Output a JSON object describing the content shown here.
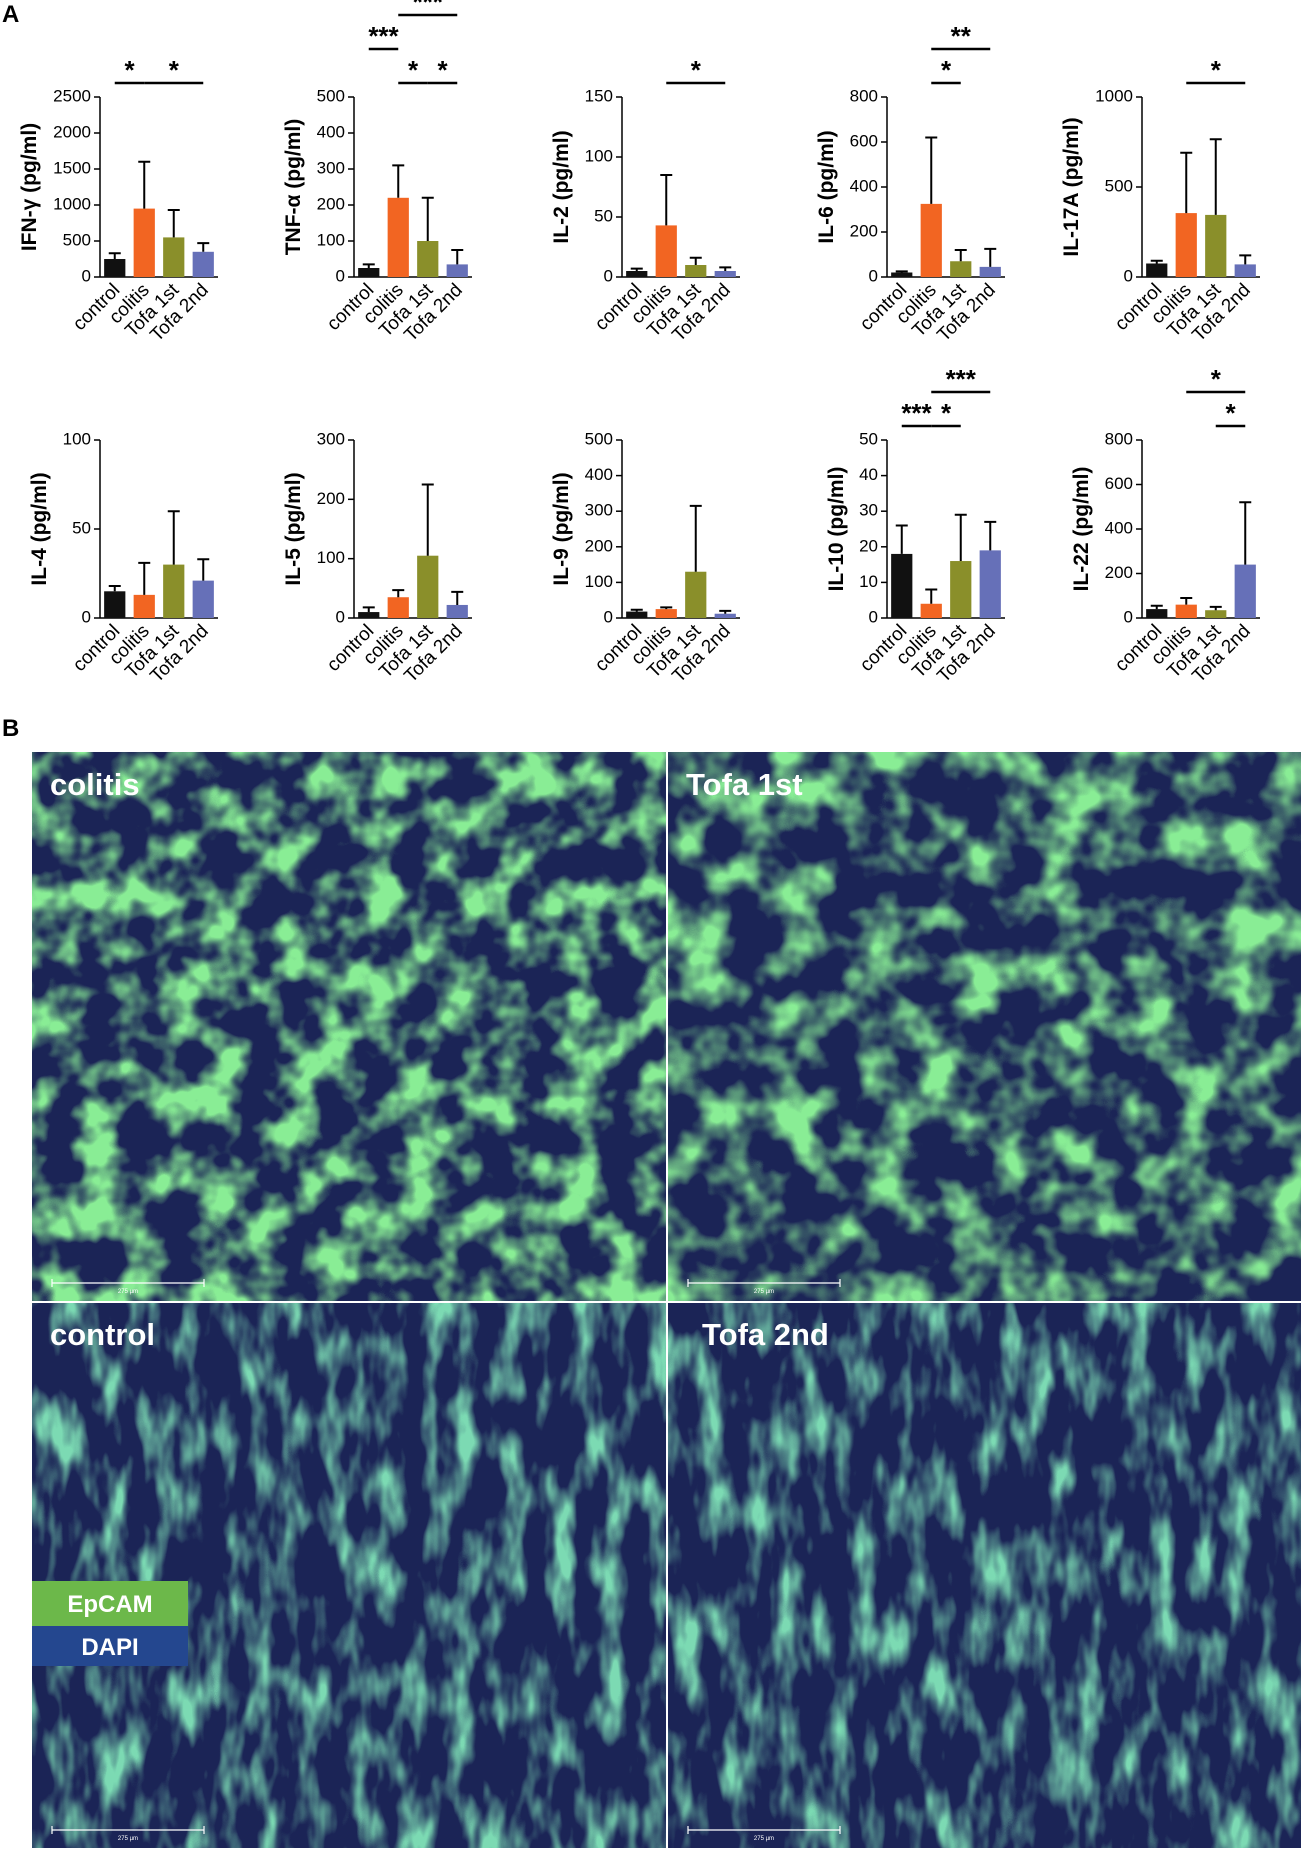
{
  "panels": [
    "A",
    "B"
  ],
  "chart_data": [
    {
      "type": "bar",
      "ylabel": "IFN-γ (pg/ml)",
      "categories": [
        "control",
        "colitis",
        "Tofa 1st",
        "Tofa 2nd"
      ],
      "colors": [
        "#111111",
        "#f26522",
        "#8a8f2a",
        "#6670b8"
      ],
      "values": [
        250,
        950,
        550,
        350
      ],
      "errors": [
        80,
        650,
        380,
        120
      ],
      "ylim": [
        0,
        2500
      ],
      "yticks": [
        0,
        500,
        1000,
        1500,
        2000,
        2500
      ],
      "annotations": [
        "*",
        "*"
      ]
    },
    {
      "type": "bar",
      "ylabel": "TNF-α (pg/ml)",
      "categories": [
        "control",
        "colitis",
        "Tofa 1st",
        "Tofa 2nd"
      ],
      "colors": [
        "#111111",
        "#f26522",
        "#8a8f2a",
        "#6670b8"
      ],
      "values": [
        25,
        220,
        100,
        35
      ],
      "errors": [
        10,
        90,
        120,
        40
      ],
      "ylim": [
        0,
        500
      ],
      "yticks": [
        0,
        100,
        200,
        300,
        400,
        500
      ],
      "annotations": [
        "***",
        "*",
        "*",
        "***"
      ]
    },
    {
      "type": "bar",
      "ylabel": "IL-2 (pg/ml)",
      "categories": [
        "control",
        "colitis",
        "Tofa 1st",
        "Tofa 2nd"
      ],
      "colors": [
        "#111111",
        "#f26522",
        "#8a8f2a",
        "#6670b8"
      ],
      "values": [
        5,
        43,
        10,
        5
      ],
      "errors": [
        2,
        42,
        6,
        3
      ],
      "ylim": [
        0,
        150
      ],
      "yticks": [
        0,
        50,
        100,
        150
      ],
      "annotations": [
        "*"
      ]
    },
    {
      "type": "bar",
      "ylabel": "IL-6 (pg/ml)",
      "categories": [
        "control",
        "colitis",
        "Tofa 1st",
        "Tofa 2nd"
      ],
      "colors": [
        "#111111",
        "#f26522",
        "#8a8f2a",
        "#6670b8"
      ],
      "values": [
        20,
        325,
        70,
        45
      ],
      "errors": [
        5,
        295,
        50,
        80
      ],
      "ylim": [
        0,
        800
      ],
      "yticks": [
        0,
        200,
        400,
        600,
        800
      ],
      "annotations": [
        "*",
        "**"
      ]
    },
    {
      "type": "bar",
      "ylabel": "IL-17A (pg/ml)",
      "categories": [
        "control",
        "colitis",
        "Tofa 1st",
        "Tofa 2nd"
      ],
      "colors": [
        "#111111",
        "#f26522",
        "#8a8f2a",
        "#6670b8"
      ],
      "values": [
        75,
        355,
        345,
        70
      ],
      "errors": [
        15,
        335,
        420,
        50
      ],
      "ylim": [
        0,
        1000
      ],
      "yticks": [
        0,
        500,
        1000
      ],
      "annotations": [
        "*"
      ]
    },
    {
      "type": "bar",
      "ylabel": "IL-4 (pg/ml)",
      "categories": [
        "control",
        "colitis",
        "Tofa 1st",
        "Tofa 2nd"
      ],
      "colors": [
        "#111111",
        "#f26522",
        "#8a8f2a",
        "#6670b8"
      ],
      "values": [
        15,
        13,
        30,
        21
      ],
      "errors": [
        3,
        18,
        30,
        12
      ],
      "ylim": [
        0,
        100
      ],
      "yticks": [
        0,
        50,
        100
      ],
      "annotations": []
    },
    {
      "type": "bar",
      "ylabel": "IL-5 (pg/ml)",
      "categories": [
        "control",
        "colitis",
        "Tofa 1st",
        "Tofa 2nd"
      ],
      "colors": [
        "#111111",
        "#f26522",
        "#8a8f2a",
        "#6670b8"
      ],
      "values": [
        10,
        35,
        105,
        22
      ],
      "errors": [
        8,
        12,
        120,
        22
      ],
      "ylim": [
        0,
        300
      ],
      "yticks": [
        0,
        100,
        200,
        300
      ],
      "annotations": []
    },
    {
      "type": "bar",
      "ylabel": "IL-9 (pg/ml)",
      "categories": [
        "control",
        "colitis",
        "Tofa 1st",
        "Tofa 2nd"
      ],
      "colors": [
        "#111111",
        "#f26522",
        "#8a8f2a",
        "#6670b8"
      ],
      "values": [
        18,
        25,
        130,
        12
      ],
      "errors": [
        5,
        5,
        185,
        8
      ],
      "ylim": [
        0,
        500
      ],
      "yticks": [
        0,
        100,
        200,
        300,
        400,
        500
      ],
      "annotations": []
    },
    {
      "type": "bar",
      "ylabel": "IL-10 (pg/ml)",
      "categories": [
        "control",
        "colitis",
        "Tofa 1st",
        "Tofa 2nd"
      ],
      "colors": [
        "#111111",
        "#f26522",
        "#8a8f2a",
        "#6670b8"
      ],
      "values": [
        18,
        4,
        16,
        19
      ],
      "errors": [
        8,
        4,
        13,
        8
      ],
      "ylim": [
        0,
        50
      ],
      "yticks": [
        0,
        10,
        20,
        30,
        40,
        50
      ],
      "annotations": [
        "***",
        "*",
        "***"
      ]
    },
    {
      "type": "bar",
      "ylabel": "IL-22 (pg/ml)",
      "categories": [
        "control",
        "colitis",
        "Tofa 1st",
        "Tofa 2nd"
      ],
      "colors": [
        "#111111",
        "#f26522",
        "#8a8f2a",
        "#6670b8"
      ],
      "values": [
        40,
        60,
        35,
        240
      ],
      "errors": [
        15,
        30,
        15,
        280
      ],
      "ylim": [
        0,
        800
      ],
      "yticks": [
        0,
        200,
        400,
        600,
        800
      ],
      "annotations": [
        "*",
        "*"
      ]
    }
  ],
  "images": [
    {
      "label": "colitis",
      "scale_bar": "275 µm"
    },
    {
      "label": "Tofa 1st",
      "scale_bar": "275 µm"
    },
    {
      "label": "control",
      "scale_bar": "275 µm"
    },
    {
      "label": "Tofa 2nd",
      "scale_bar": "275 µm"
    }
  ],
  "legend": [
    "EpCAM",
    "DAPI"
  ]
}
